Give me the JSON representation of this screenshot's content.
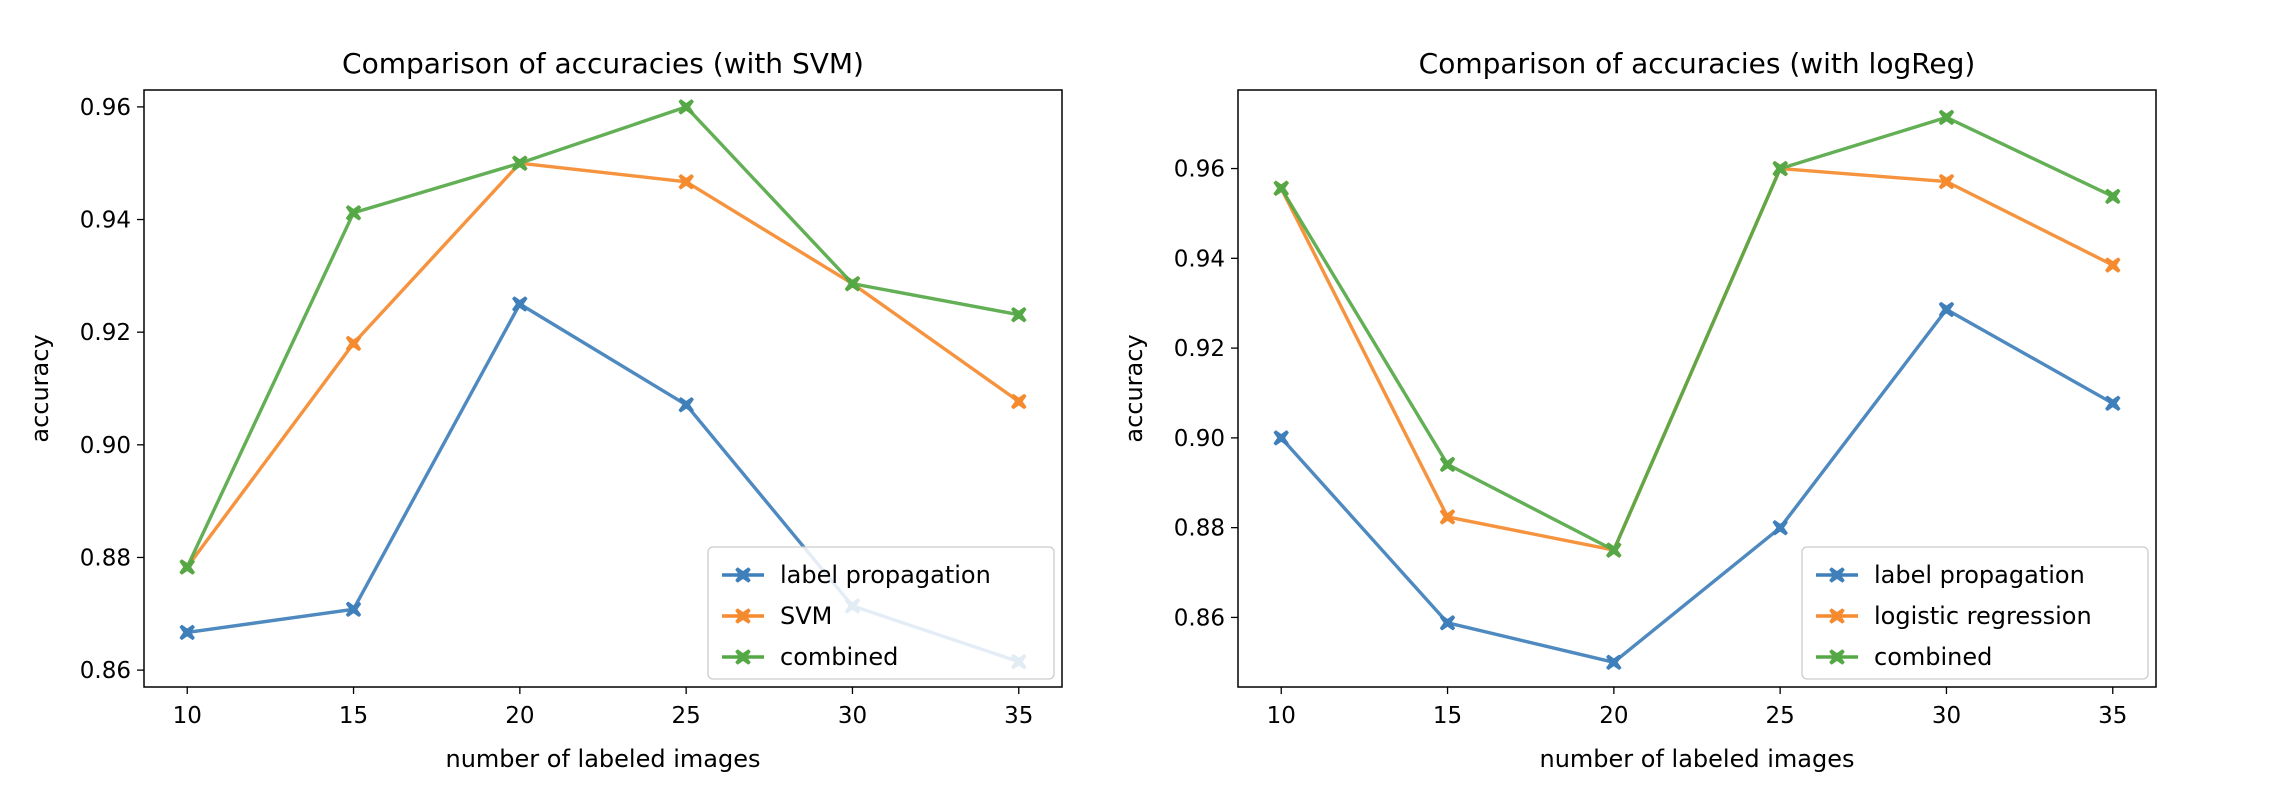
{
  "chart_data": [
    {
      "type": "line",
      "title": "Comparison of accuracies (with SVM)",
      "xlabel": "number of labeled images",
      "ylabel": "accuracy",
      "x": [
        10,
        15,
        20,
        25,
        30,
        35
      ],
      "xticks": [
        "10",
        "15",
        "20",
        "25",
        "30",
        "35"
      ],
      "xlim": [
        8.7,
        36.3
      ],
      "ylim": [
        0.857,
        0.963
      ],
      "yticks": [
        0.86,
        0.88,
        0.9,
        0.92,
        0.94,
        0.96
      ],
      "ytick_labels": [
        "0.86",
        "0.88",
        "0.90",
        "0.92",
        "0.94",
        "0.96"
      ],
      "grid": false,
      "legend_position": "lower-right",
      "marker": "X",
      "series": [
        {
          "name": "label propagation",
          "color": "#3f7fba",
          "values": [
            0.8667,
            0.8708,
            0.925,
            0.9071,
            0.8714,
            0.8615
          ]
        },
        {
          "name": "SVM",
          "color": "#f58a2e",
          "values": [
            0.8783,
            0.918,
            0.95,
            0.9467,
            0.9286,
            0.9077
          ]
        },
        {
          "name": "combined",
          "color": "#55a846",
          "values": [
            0.8783,
            0.9412,
            0.95,
            0.96,
            0.9286,
            0.9231
          ]
        }
      ]
    },
    {
      "type": "line",
      "title": "Comparison of accuracies (with logReg)",
      "xlabel": "number of labeled images",
      "ylabel": "accuracy",
      "x": [
        10,
        15,
        20,
        25,
        30,
        35
      ],
      "xticks": [
        "10",
        "15",
        "20",
        "25",
        "30",
        "35"
      ],
      "xlim": [
        8.7,
        36.3
      ],
      "ylim": [
        0.8445,
        0.9775
      ],
      "yticks": [
        0.86,
        0.88,
        0.9,
        0.92,
        0.94,
        0.96
      ],
      "ytick_labels": [
        "0.86",
        "0.88",
        "0.90",
        "0.92",
        "0.94",
        "0.96"
      ],
      "grid": false,
      "legend_position": "lower-right",
      "marker": "X",
      "series": [
        {
          "name": "label propagation",
          "color": "#3f7fba",
          "values": [
            0.9,
            0.8588,
            0.85,
            0.88,
            0.9286,
            0.9077
          ]
        },
        {
          "name": "logistic regression",
          "color": "#f58a2e",
          "values": [
            0.9556,
            0.8824,
            0.875,
            0.96,
            0.9571,
            0.9385
          ]
        },
        {
          "name": "combined",
          "color": "#55a846",
          "values": [
            0.9556,
            0.8941,
            0.875,
            0.96,
            0.9714,
            0.9538
          ]
        }
      ]
    }
  ]
}
